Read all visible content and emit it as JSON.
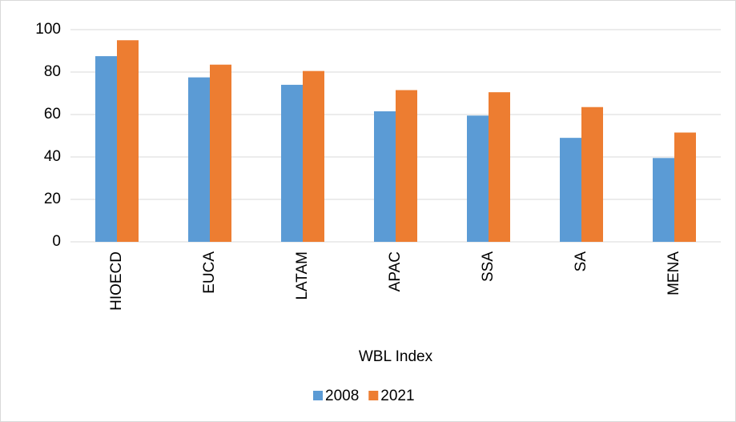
{
  "chart_data": {
    "type": "bar",
    "x_label": "WBL Index",
    "categories": [
      "HIOECD",
      "EUCA",
      "LATAM",
      "APAC",
      "SSA",
      "SA",
      "MENA"
    ],
    "series": [
      {
        "name": "2008",
        "color": "#5b9bd5",
        "values": [
          87.5,
          77.5,
          74,
          61.5,
          59.5,
          49,
          39.5
        ]
      },
      {
        "name": "2021",
        "color": "#ed7d31",
        "values": [
          95,
          83.5,
          80.5,
          71.5,
          70.5,
          63.5,
          51.5
        ]
      }
    ],
    "ylim": [
      0,
      100
    ],
    "yticks": [
      0,
      20,
      40,
      60,
      80,
      100
    ],
    "grid": true,
    "legend": "bottom"
  }
}
